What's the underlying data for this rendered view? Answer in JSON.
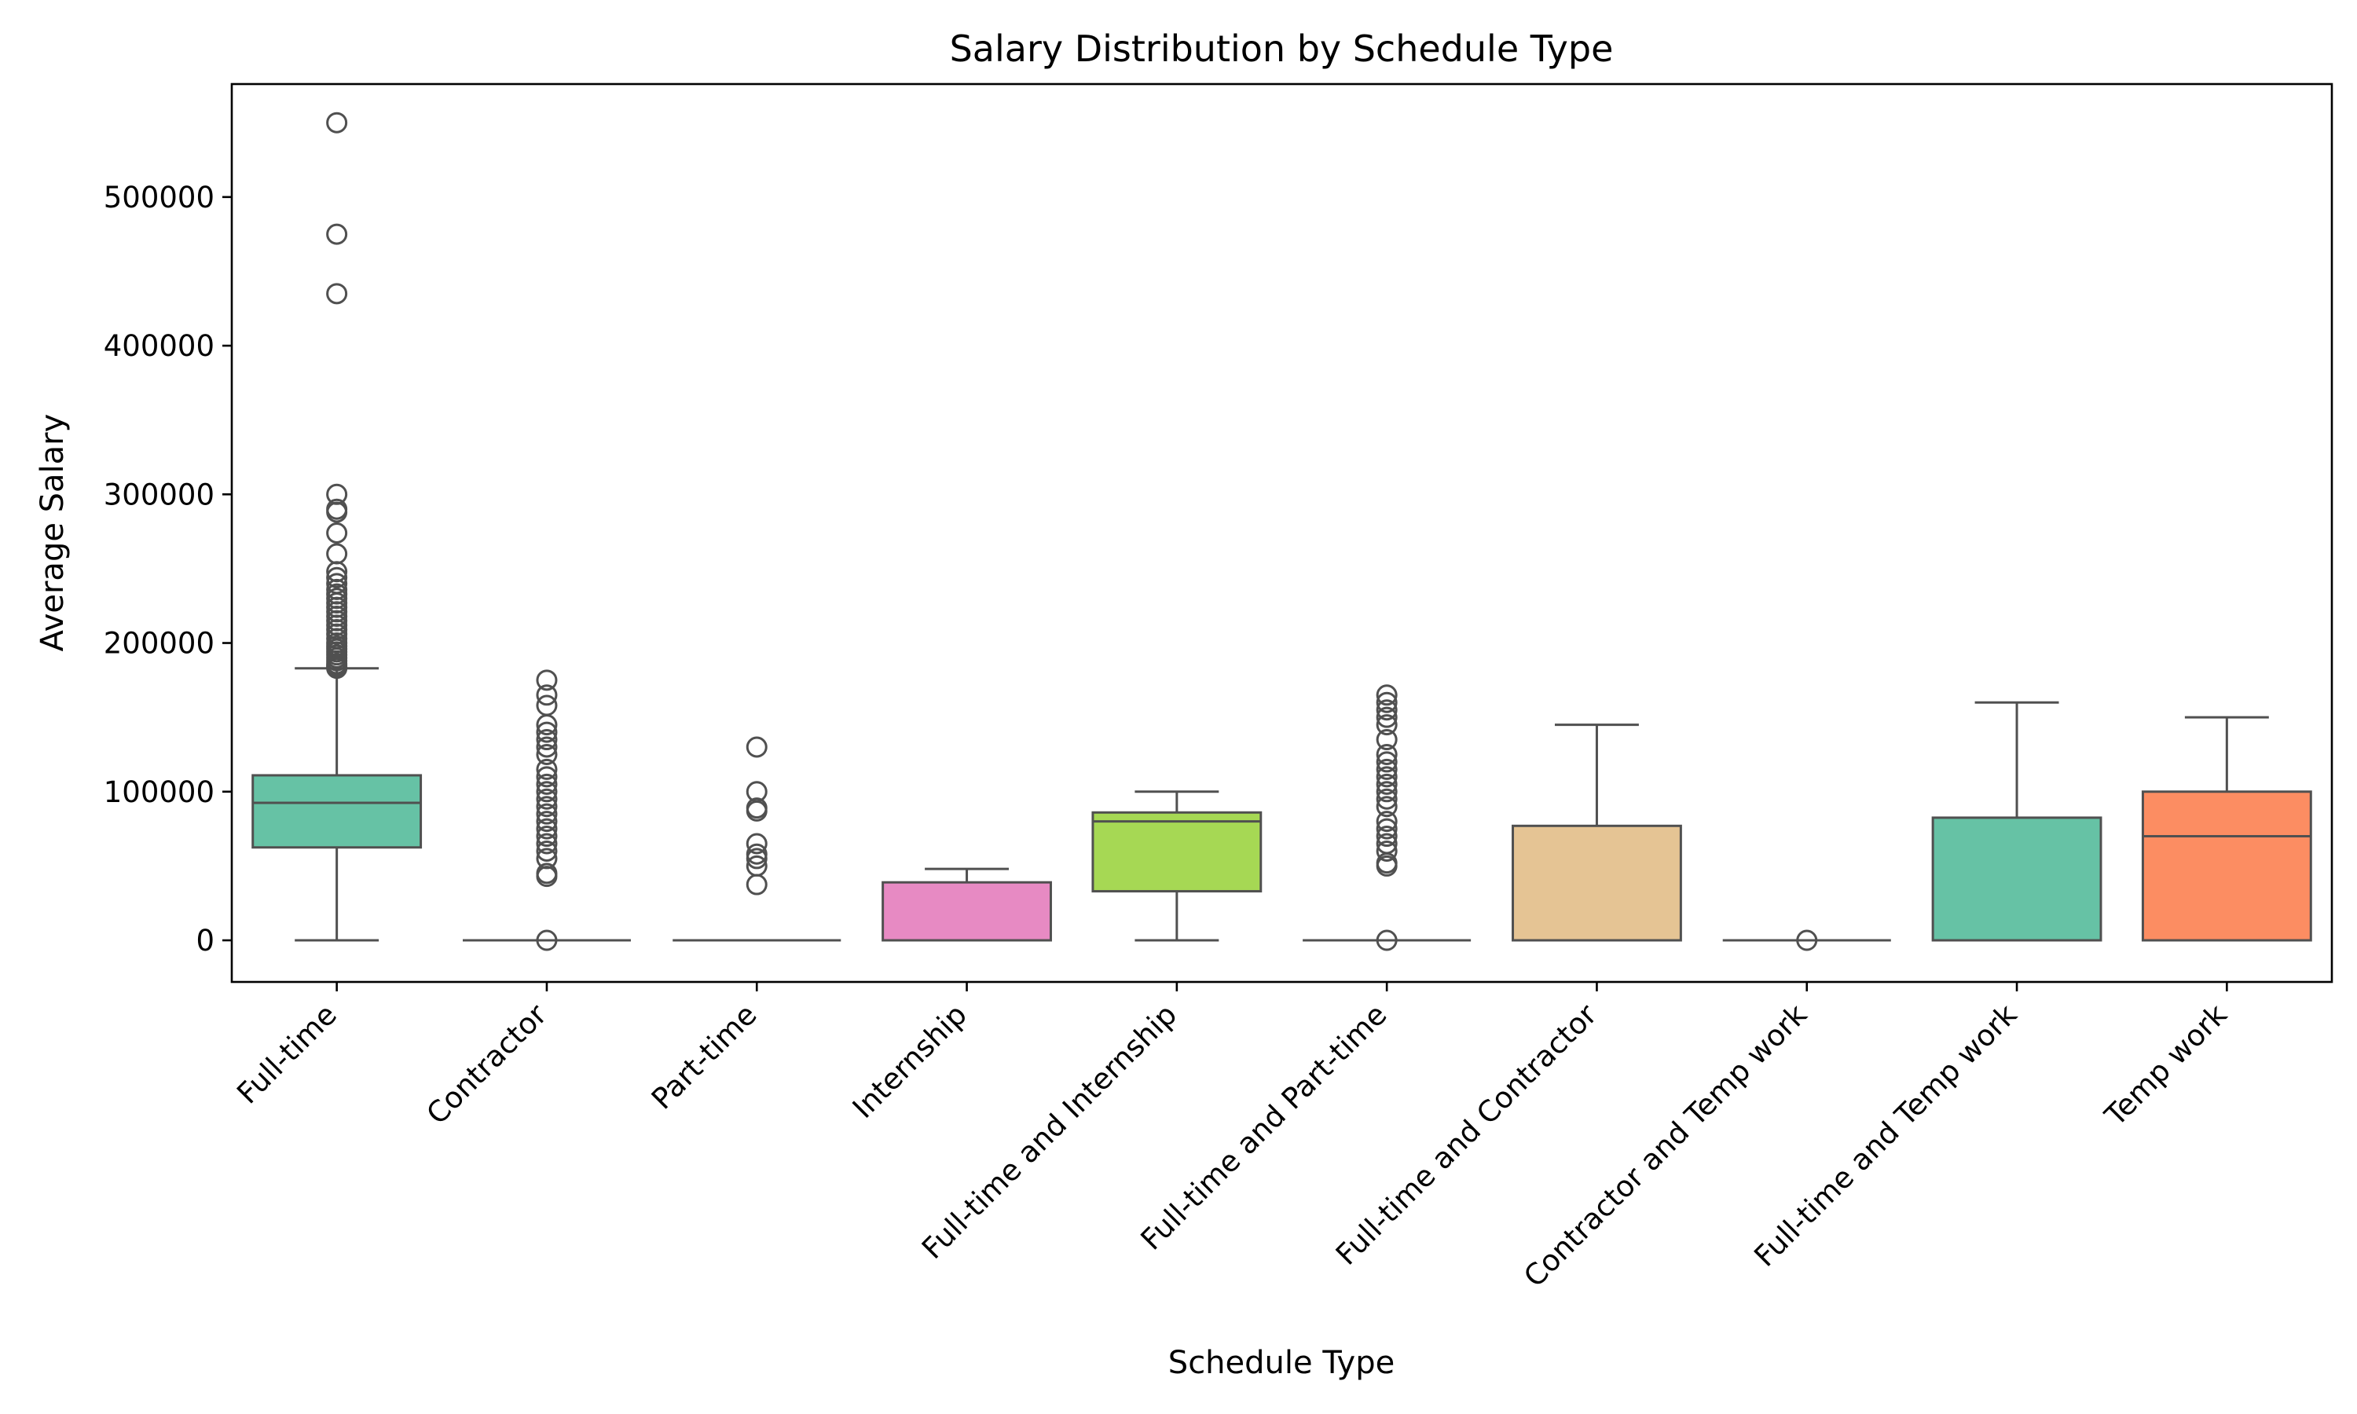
{
  "chart_data": {
    "type": "box",
    "title": "Salary Distribution by Schedule Type",
    "xlabel": "Schedule Type",
    "ylabel": "Average Salary",
    "ylim": [
      -28000,
      576000
    ],
    "yticks": [
      0,
      100000,
      200000,
      300000,
      400000,
      500000
    ],
    "ytick_labels": [
      "0",
      "100000",
      "200000",
      "300000",
      "400000",
      "500000"
    ],
    "grid": false,
    "categories": [
      {
        "label": "Full-time",
        "color": "#66c2a5",
        "min": 0,
        "q1": 62500,
        "median": 92500,
        "q3": 111000,
        "max": 183000,
        "outliers": [
          183000,
          184000,
          185000,
          186000,
          188000,
          190000,
          192000,
          194000,
          196000,
          198000,
          200000,
          203000,
          206000,
          209000,
          212000,
          215000,
          218000,
          221000,
          224000,
          227000,
          230000,
          233000,
          236000,
          240000,
          244000,
          248000,
          260000,
          274000,
          288000,
          290000,
          300000,
          435000,
          475000,
          550000
        ]
      },
      {
        "label": "Contractor",
        "color": "#fc8d62",
        "min": 0,
        "q1": 0,
        "median": 0,
        "q3": 0,
        "max": 0,
        "outliers": [
          0,
          43000,
          45000,
          55000,
          60000,
          65000,
          70000,
          75000,
          80000,
          85000,
          90000,
          95000,
          100000,
          105000,
          110000,
          115000,
          125000,
          130000,
          135000,
          140000,
          145000,
          158000,
          165000,
          175000
        ]
      },
      {
        "label": "Part-time",
        "color": "#8da0cb",
        "min": 0,
        "q1": 0,
        "median": 0,
        "q3": 0,
        "max": 0,
        "outliers": [
          37500,
          50000,
          55000,
          58000,
          65000,
          87000,
          89000,
          100000,
          130000
        ]
      },
      {
        "label": "Internship",
        "color": "#e78ac3",
        "min": 0,
        "q1": 0,
        "median": 0,
        "q3": 39000,
        "max": 48000,
        "outliers": []
      },
      {
        "label": "Full-time and Internship",
        "color": "#a6d854",
        "min": 0,
        "q1": 33000,
        "median": 80000,
        "q3": 86000,
        "max": 100000,
        "outliers": []
      },
      {
        "label": "Full-time and Part-time",
        "color": "#ffd92f",
        "min": 0,
        "q1": 0,
        "median": 0,
        "q3": 0,
        "max": 0,
        "outliers": [
          0,
          50000,
          52000,
          60000,
          65000,
          70000,
          75000,
          80000,
          90000,
          95000,
          100000,
          105000,
          110000,
          115000,
          120000,
          125000,
          135000,
          145000,
          150000,
          155000,
          160000,
          165000
        ]
      },
      {
        "label": "Full-time and Contractor",
        "color": "#e5c494",
        "min": 0,
        "q1": 0,
        "median": 0,
        "q3": 77000,
        "max": 145000,
        "outliers": []
      },
      {
        "label": "Contractor and Temp work",
        "color": "#b3b3b3",
        "min": 0,
        "q1": 0,
        "median": 0,
        "q3": 0,
        "max": 0,
        "outliers": [
          0
        ]
      },
      {
        "label": "Full-time and Temp work",
        "color": "#66c2a5",
        "min": 0,
        "q1": 0,
        "median": 0,
        "q3": 82500,
        "max": 160000,
        "outliers": []
      },
      {
        "label": "Temp work",
        "color": "#fc8d62",
        "min": 0,
        "q1": 0,
        "median": 70000,
        "q3": 100000,
        "max": 150000,
        "outliers": []
      }
    ]
  }
}
